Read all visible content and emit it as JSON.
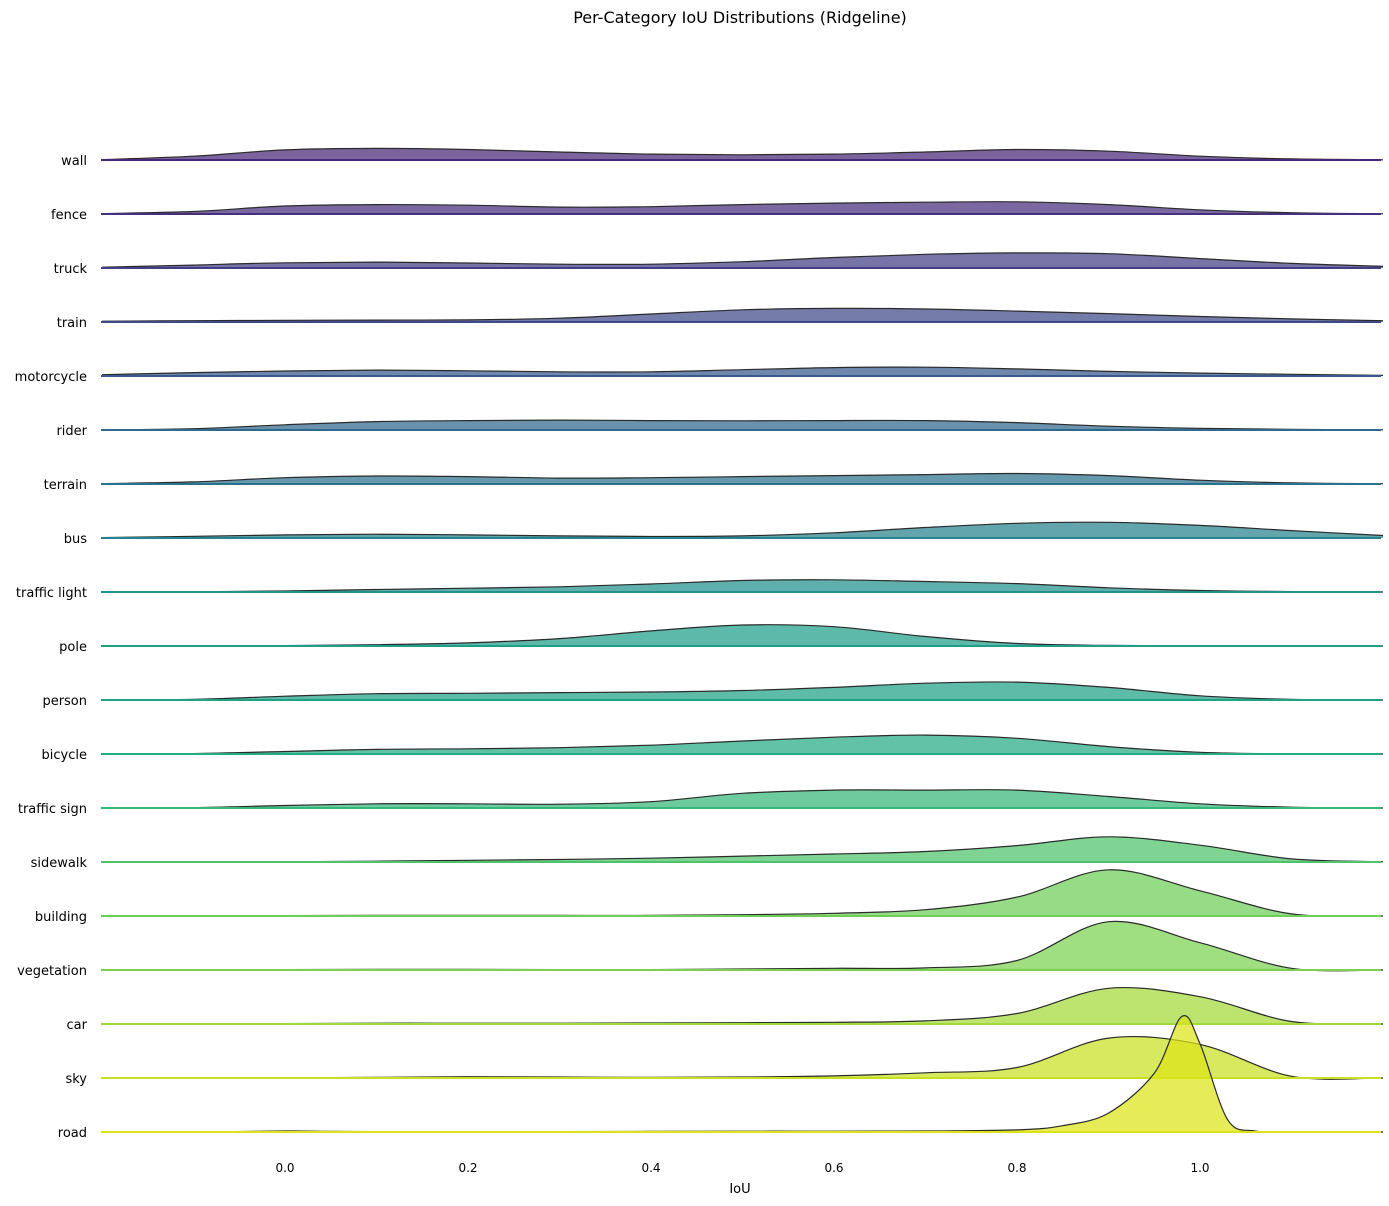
{
  "chart_data": {
    "type": "area",
    "title": "Per-Category IoU Distributions (Ridgeline)",
    "xlabel": "IoU",
    "ylabel": "",
    "xlim": [
      -0.2,
      1.2
    ],
    "x_ticks": [
      "0.0",
      "0.2",
      "0.4",
      "0.6",
      "0.8",
      "1.0"
    ],
    "x_tick_values": [
      0.0,
      0.2,
      0.4,
      0.6,
      0.8,
      1.0
    ],
    "grid": false,
    "categories": [
      "wall",
      "fence",
      "truck",
      "train",
      "motorcycle",
      "rider",
      "terrain",
      "bus",
      "traffic light",
      "pole",
      "person",
      "bicycle",
      "traffic sign",
      "sidewalk",
      "building",
      "vegetation",
      "car",
      "sky",
      "road"
    ],
    "colors": [
      "#482878",
      "#472f7d",
      "#433e85",
      "#3e4a89",
      "#38598c",
      "#31688e",
      "#2c728e",
      "#26828e",
      "#21918c",
      "#1f9e89",
      "#1fa187",
      "#25ab82",
      "#35b779",
      "#4ec36b",
      "#6ece58",
      "#7ad151",
      "#a2da37",
      "#c8e020",
      "#dde318"
    ],
    "series": [
      {
        "name": "wall",
        "x": [
          -0.2,
          -0.1,
          0.0,
          0.1,
          0.2,
          0.3,
          0.4,
          0.5,
          0.6,
          0.7,
          0.8,
          0.9,
          1.0,
          1.1,
          1.2
        ],
        "density": [
          0.02,
          0.18,
          0.48,
          0.55,
          0.5,
          0.38,
          0.28,
          0.25,
          0.28,
          0.38,
          0.5,
          0.42,
          0.18,
          0.05,
          0.01
        ]
      },
      {
        "name": "fence",
        "x": [
          -0.2,
          -0.1,
          0.0,
          0.1,
          0.2,
          0.3,
          0.4,
          0.5,
          0.6,
          0.7,
          0.8,
          0.9,
          1.0,
          1.1,
          1.2
        ],
        "density": [
          0.02,
          0.12,
          0.38,
          0.45,
          0.42,
          0.33,
          0.35,
          0.45,
          0.52,
          0.56,
          0.58,
          0.45,
          0.2,
          0.06,
          0.01
        ]
      },
      {
        "name": "truck",
        "x": [
          -0.2,
          -0.1,
          0.0,
          0.1,
          0.2,
          0.3,
          0.4,
          0.5,
          0.6,
          0.7,
          0.8,
          0.9,
          1.0,
          1.1,
          1.2
        ],
        "density": [
          0.04,
          0.14,
          0.25,
          0.28,
          0.24,
          0.18,
          0.18,
          0.3,
          0.5,
          0.65,
          0.72,
          0.68,
          0.45,
          0.22,
          0.08
        ]
      },
      {
        "name": "train",
        "x": [
          -0.2,
          -0.1,
          0.0,
          0.1,
          0.2,
          0.3,
          0.4,
          0.5,
          0.6,
          0.7,
          0.8,
          0.9,
          1.0,
          1.1,
          1.2
        ],
        "density": [
          0.04,
          0.06,
          0.08,
          0.09,
          0.1,
          0.18,
          0.38,
          0.58,
          0.65,
          0.62,
          0.52,
          0.4,
          0.26,
          0.15,
          0.06
        ]
      },
      {
        "name": "motorcycle",
        "x": [
          -0.2,
          -0.1,
          0.0,
          0.1,
          0.2,
          0.3,
          0.4,
          0.5,
          0.6,
          0.7,
          0.8,
          0.9,
          1.0,
          1.1,
          1.2
        ],
        "density": [
          0.06,
          0.16,
          0.24,
          0.28,
          0.25,
          0.2,
          0.2,
          0.3,
          0.4,
          0.42,
          0.34,
          0.22,
          0.14,
          0.08,
          0.03
        ]
      },
      {
        "name": "rider",
        "x": [
          -0.2,
          -0.1,
          0.0,
          0.1,
          0.2,
          0.3,
          0.4,
          0.5,
          0.6,
          0.7,
          0.8,
          0.9,
          1.0,
          1.1,
          1.2
        ],
        "density": [
          0.01,
          0.06,
          0.25,
          0.4,
          0.45,
          0.47,
          0.45,
          0.44,
          0.45,
          0.45,
          0.35,
          0.18,
          0.08,
          0.03,
          0.01
        ]
      },
      {
        "name": "terrain",
        "x": [
          -0.2,
          -0.1,
          0.0,
          0.1,
          0.2,
          0.3,
          0.4,
          0.5,
          0.6,
          0.7,
          0.8,
          0.9,
          1.0,
          1.1,
          1.2
        ],
        "density": [
          0.02,
          0.1,
          0.3,
          0.38,
          0.35,
          0.28,
          0.3,
          0.35,
          0.4,
          0.45,
          0.5,
          0.4,
          0.18,
          0.05,
          0.01
        ]
      },
      {
        "name": "bus",
        "x": [
          -0.2,
          -0.1,
          0.0,
          0.1,
          0.2,
          0.3,
          0.4,
          0.5,
          0.6,
          0.7,
          0.8,
          0.9,
          1.0,
          1.1,
          1.2
        ],
        "density": [
          0.02,
          0.08,
          0.15,
          0.18,
          0.15,
          0.1,
          0.07,
          0.1,
          0.25,
          0.5,
          0.7,
          0.75,
          0.6,
          0.35,
          0.12
        ]
      },
      {
        "name": "traffic light",
        "x": [
          -0.2,
          -0.1,
          0.0,
          0.1,
          0.2,
          0.3,
          0.4,
          0.5,
          0.6,
          0.7,
          0.8,
          0.9,
          1.0,
          1.1,
          1.2
        ],
        "density": [
          0.0,
          0.01,
          0.05,
          0.12,
          0.18,
          0.25,
          0.38,
          0.55,
          0.58,
          0.5,
          0.4,
          0.2,
          0.07,
          0.02,
          0.0
        ]
      },
      {
        "name": "pole",
        "x": [
          -0.2,
          -0.1,
          0.0,
          0.1,
          0.2,
          0.3,
          0.4,
          0.5,
          0.6,
          0.7,
          0.8,
          0.9,
          1.0,
          1.1,
          1.2
        ],
        "density": [
          0.0,
          0.0,
          0.02,
          0.06,
          0.15,
          0.35,
          0.72,
          1.0,
          0.92,
          0.45,
          0.12,
          0.03,
          0.01,
          0.0,
          0.0
        ]
      },
      {
        "name": "person",
        "x": [
          -0.2,
          -0.1,
          0.0,
          0.1,
          0.2,
          0.3,
          0.4,
          0.5,
          0.6,
          0.7,
          0.8,
          0.9,
          1.0,
          1.1,
          1.2
        ],
        "density": [
          0.0,
          0.03,
          0.18,
          0.3,
          0.32,
          0.35,
          0.38,
          0.45,
          0.6,
          0.8,
          0.85,
          0.6,
          0.2,
          0.03,
          0.0
        ]
      },
      {
        "name": "bicycle",
        "x": [
          -0.2,
          -0.1,
          0.0,
          0.1,
          0.2,
          0.3,
          0.4,
          0.5,
          0.6,
          0.7,
          0.8,
          0.9,
          1.0,
          1.1,
          1.2
        ],
        "density": [
          0.0,
          0.02,
          0.12,
          0.22,
          0.25,
          0.3,
          0.42,
          0.62,
          0.8,
          0.9,
          0.75,
          0.35,
          0.08,
          0.01,
          0.0
        ]
      },
      {
        "name": "traffic sign",
        "x": [
          -0.2,
          -0.1,
          0.0,
          0.1,
          0.2,
          0.3,
          0.4,
          0.5,
          0.6,
          0.7,
          0.8,
          0.9,
          1.0,
          1.1,
          1.2
        ],
        "density": [
          0.0,
          0.02,
          0.12,
          0.2,
          0.2,
          0.18,
          0.3,
          0.7,
          0.85,
          0.85,
          0.85,
          0.55,
          0.2,
          0.04,
          0.0
        ]
      },
      {
        "name": "sidewalk",
        "x": [
          -0.2,
          -0.1,
          0.0,
          0.1,
          0.2,
          0.3,
          0.4,
          0.5,
          0.6,
          0.7,
          0.8,
          0.9,
          1.0,
          1.1,
          1.2
        ],
        "density": [
          0.0,
          0.0,
          0.01,
          0.04,
          0.08,
          0.12,
          0.18,
          0.28,
          0.38,
          0.5,
          0.78,
          1.2,
          0.8,
          0.15,
          0.01
        ]
      },
      {
        "name": "building",
        "x": [
          -0.2,
          -0.1,
          0.0,
          0.1,
          0.2,
          0.3,
          0.4,
          0.5,
          0.6,
          0.7,
          0.8,
          0.9,
          1.0,
          1.1,
          1.2
        ],
        "density": [
          0.0,
          0.0,
          0.02,
          0.03,
          0.03,
          0.03,
          0.03,
          0.06,
          0.13,
          0.3,
          0.9,
          2.2,
          1.2,
          0.1,
          0.0
        ]
      },
      {
        "name": "vegetation",
        "x": [
          -0.2,
          -0.1,
          0.0,
          0.1,
          0.2,
          0.3,
          0.4,
          0.5,
          0.6,
          0.7,
          0.8,
          0.9,
          1.0,
          1.1,
          1.2
        ],
        "density": [
          0.0,
          0.0,
          0.02,
          0.03,
          0.03,
          0.02,
          0.02,
          0.05,
          0.08,
          0.1,
          0.45,
          2.3,
          1.3,
          0.08,
          0.0
        ]
      },
      {
        "name": "car",
        "x": [
          -0.2,
          -0.1,
          0.0,
          0.1,
          0.2,
          0.3,
          0.4,
          0.5,
          0.6,
          0.7,
          0.8,
          0.9,
          1.0,
          1.1,
          1.2
        ],
        "density": [
          0.0,
          0.0,
          0.02,
          0.04,
          0.04,
          0.04,
          0.05,
          0.06,
          0.08,
          0.15,
          0.5,
          1.7,
          1.3,
          0.12,
          0.0
        ]
      },
      {
        "name": "sky",
        "x": [
          -0.2,
          -0.1,
          0.0,
          0.1,
          0.2,
          0.3,
          0.4,
          0.5,
          0.6,
          0.7,
          0.8,
          0.9,
          1.0,
          1.1,
          1.2
        ],
        "density": [
          0.0,
          0.0,
          0.01,
          0.03,
          0.06,
          0.05,
          0.03,
          0.05,
          0.1,
          0.25,
          0.5,
          1.9,
          1.6,
          0.08,
          0.0
        ]
      },
      {
        "name": "road",
        "x": [
          -0.2,
          -0.1,
          0.0,
          0.05,
          0.1,
          0.2,
          0.3,
          0.4,
          0.5,
          0.6,
          0.7,
          0.8,
          0.85,
          0.9,
          0.95,
          0.98,
          1.0,
          1.03,
          1.06,
          1.1,
          1.2
        ],
        "density": [
          0.0,
          0.0,
          0.05,
          0.03,
          0.02,
          0.02,
          0.02,
          0.03,
          0.04,
          0.04,
          0.05,
          0.1,
          0.3,
          0.9,
          2.8,
          5.5,
          4.2,
          0.6,
          0.05,
          0.0,
          0.0
        ]
      }
    ]
  }
}
